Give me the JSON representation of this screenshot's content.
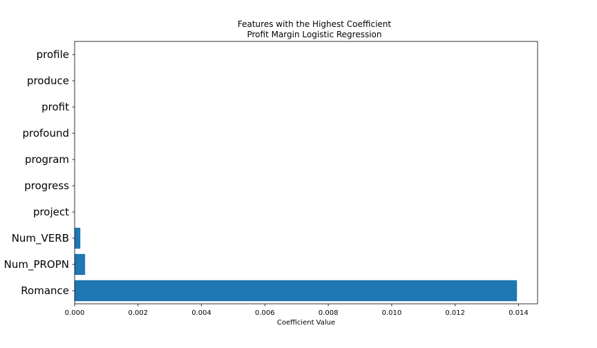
{
  "chart_data": {
    "type": "bar",
    "orientation": "horizontal",
    "title": "Features with the Highest Coefficient",
    "subtitle": "Profit Margin Logistic Regression",
    "xlabel": "Coefficient Value",
    "ylabel": "",
    "categories": [
      "Romance",
      "Num_PROPN",
      "Num_VERB",
      "project",
      "progress",
      "program",
      "profound",
      "profit",
      "produce",
      "profile"
    ],
    "values": [
      0.01395,
      0.00033,
      0.00018,
      0.0,
      0.0,
      0.0,
      0.0,
      0.0,
      0.0,
      0.0
    ],
    "xlim": [
      0.0,
      0.0146
    ],
    "xticks": [
      0.0,
      0.002,
      0.004,
      0.006,
      0.008,
      0.01,
      0.012,
      0.014
    ],
    "xtick_labels": [
      "0.000",
      "0.002",
      "0.004",
      "0.006",
      "0.008",
      "0.010",
      "0.012",
      "0.014"
    ],
    "bar_color": "#1f77b4",
    "grid": false,
    "legend": "none"
  }
}
